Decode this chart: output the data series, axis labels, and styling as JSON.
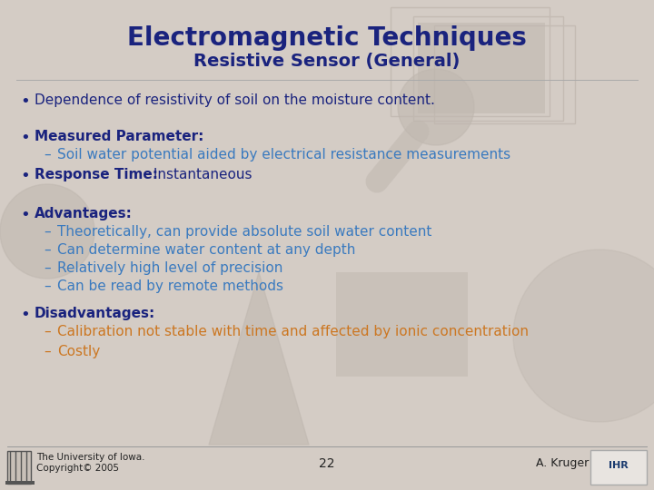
{
  "title1": "Electromagnetic Techniques",
  "title2": "Resistive Sensor (General)",
  "bg_color": "#d4ccc5",
  "title1_color": "#1a237e",
  "title2_color": "#1a237e",
  "bullet_color": "#1a237e",
  "sub_color": "#3a7abf",
  "orange_color": "#cc7722",
  "bullet1": "Dependence of resistivity of soil on the moisture content.",
  "bullet2_bold": "Measured Parameter:",
  "bullet2_sub": "Soil water potential aided by electrical resistance measurements",
  "bullet3_bold": "Response Time:",
  "bullet3_normal": " Instantaneous",
  "bullet4_bold": "Advantages:",
  "adv1": "Theoretically, can provide absolute soil water content",
  "adv2": "Can determine water content at any depth",
  "adv3": "Relatively high level of precision",
  "adv4": "Can be read by remote methods",
  "bullet5_bold": "Disadvantages:",
  "dis1": "Calibration not stable with time and affected by ionic concentration",
  "dis2": "Costly",
  "footer_left1": "The University of Iowa.",
  "footer_left2": "Copyright© 2005",
  "footer_center": "22",
  "footer_right": "A. Kruger",
  "deco_rect_color": "#c4bbb3",
  "deco_shape_color": "#bfb7af"
}
